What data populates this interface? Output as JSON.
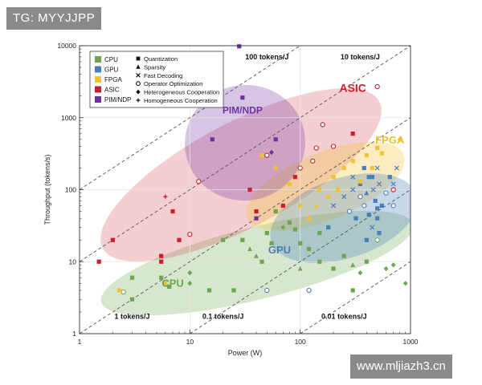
{
  "watermarks": {
    "top": "TG: MYYJJPP",
    "bottom": "www.mljiazh3.cn"
  },
  "colors": {
    "cpu": "#6aa84f",
    "gpu": "#4a7ebb",
    "fpga": "#f1c232",
    "asic": "#cc1f2e",
    "pim": "#7030a0",
    "axis": "#333333",
    "guide": "#555555"
  },
  "chart_data": {
    "type": "scatter",
    "title": "",
    "xlabel": "Power (W)",
    "ylabel": "Throughput (tokens/s)",
    "xscale": "log",
    "yscale": "log",
    "xlim": [
      1,
      1000
    ],
    "ylim": [
      1,
      10000
    ],
    "x_ticks": [
      "1",
      "10",
      "100",
      "1000"
    ],
    "y_ticks": [
      "1",
      "10",
      "100",
      "1000",
      "10000"
    ],
    "efficiency_lines": [
      {
        "label": "100 tokens/J",
        "tokens_per_joule": 100,
        "label_x": 50,
        "label_y": 6500
      },
      {
        "label": "10 tokens/J",
        "tokens_per_joule": 10,
        "label_x": 350,
        "label_y": 6500
      },
      {
        "label": "1 tokens/J",
        "tokens_per_joule": 1,
        "label_x": 3,
        "label_y": 1.6
      },
      {
        "label": "0.1 tokens/J",
        "tokens_per_joule": 0.1,
        "label_x": 20,
        "label_y": 1.6
      },
      {
        "label": "0.01 tokens/J",
        "tokens_per_joule": 0.01,
        "label_x": 250,
        "label_y": 1.6
      }
    ],
    "legend": {
      "placement": "top-left",
      "platforms": [
        {
          "name": "CPU",
          "key": "cpu"
        },
        {
          "name": "GPU",
          "key": "gpu"
        },
        {
          "name": "FPGA",
          "key": "fpga"
        },
        {
          "name": "ASIC",
          "key": "asic"
        },
        {
          "name": "PIM/NDP",
          "key": "pim"
        }
      ],
      "techniques": [
        {
          "name": "Quantization",
          "marker": "square"
        },
        {
          "name": "Sparsity",
          "marker": "triangle"
        },
        {
          "name": "Fast Decoding",
          "marker": "x"
        },
        {
          "name": "Operator Optimization",
          "marker": "circle"
        },
        {
          "name": "Heterogeneous Cooperation",
          "marker": "diamond"
        },
        {
          "name": "Homogeneous Cooperation",
          "marker": "plus"
        }
      ]
    },
    "regions": [
      {
        "name": "CPU",
        "key": "cpu",
        "label_x": 7,
        "label_y": 4.5,
        "label_size": 13
      },
      {
        "name": "GPU",
        "key": "gpu",
        "label_x": 65,
        "label_y": 13,
        "label_size": 13
      },
      {
        "name": "FPGA",
        "key": "fpga",
        "label_x": 650,
        "label_y": 440,
        "label_size": 13
      },
      {
        "name": "ASIC",
        "key": "asic",
        "label_x": 300,
        "label_y": 2300,
        "label_size": 14
      },
      {
        "name": "PIM/NDP",
        "key": "pim",
        "label_x": 30,
        "label_y": 1150,
        "label_size": 12
      }
    ],
    "series": [
      {
        "name": "CPU",
        "key": "cpu",
        "points": [
          [
            2.5,
            3.8,
            "circle"
          ],
          [
            3,
            3,
            "square"
          ],
          [
            3,
            6,
            "square"
          ],
          [
            5.5,
            6,
            "square"
          ],
          [
            6,
            5,
            "square"
          ],
          [
            6.5,
            4.5,
            "square"
          ],
          [
            10,
            7,
            "diamond"
          ],
          [
            10,
            5,
            "diamond"
          ],
          [
            15,
            4,
            "square"
          ],
          [
            20,
            20,
            "square"
          ],
          [
            25,
            4,
            "square"
          ],
          [
            30,
            20,
            "square"
          ],
          [
            35,
            15,
            "triangle"
          ],
          [
            40,
            12,
            "triangle"
          ],
          [
            50,
            25,
            "square"
          ],
          [
            55,
            18,
            "square"
          ],
          [
            60,
            50,
            "square"
          ],
          [
            80,
            35,
            "square"
          ],
          [
            90,
            28,
            "square"
          ],
          [
            100,
            18,
            "square"
          ],
          [
            100,
            8,
            "triangle"
          ],
          [
            120,
            15,
            "square"
          ],
          [
            150,
            25,
            "square"
          ],
          [
            150,
            10,
            "square"
          ],
          [
            200,
            8,
            "square"
          ],
          [
            250,
            12,
            "square"
          ],
          [
            300,
            9,
            "triangle"
          ],
          [
            300,
            4,
            "square"
          ],
          [
            350,
            7,
            "diamond"
          ],
          [
            400,
            10,
            "square"
          ],
          [
            500,
            20,
            "circle"
          ],
          [
            600,
            8,
            "diamond"
          ],
          [
            700,
            9,
            "diamond"
          ],
          [
            900,
            5,
            "diamond"
          ],
          [
            45,
            10,
            "square"
          ],
          [
            70,
            30,
            "diamond"
          ]
        ]
      },
      {
        "name": "GPU",
        "key": "gpu",
        "points": [
          [
            50,
            4,
            "circle"
          ],
          [
            120,
            4,
            "circle"
          ],
          [
            180,
            30,
            "square"
          ],
          [
            200,
            60,
            "x"
          ],
          [
            250,
            80,
            "x"
          ],
          [
            280,
            50,
            "circle"
          ],
          [
            300,
            100,
            "x"
          ],
          [
            320,
            40,
            "square"
          ],
          [
            350,
            120,
            "square"
          ],
          [
            380,
            60,
            "circle"
          ],
          [
            400,
            90,
            "triangle"
          ],
          [
            420,
            45,
            "square"
          ],
          [
            450,
            150,
            "square"
          ],
          [
            480,
            70,
            "square"
          ],
          [
            500,
            200,
            "x"
          ],
          [
            500,
            40,
            "square"
          ],
          [
            520,
            120,
            "x"
          ],
          [
            550,
            60,
            "square"
          ],
          [
            600,
            90,
            "circle"
          ],
          [
            650,
            150,
            "square"
          ],
          [
            700,
            60,
            "circle"
          ],
          [
            700,
            120,
            "x"
          ],
          [
            750,
            200,
            "x"
          ],
          [
            400,
            20,
            "square"
          ],
          [
            450,
            30,
            "x"
          ],
          [
            380,
            200,
            "square"
          ],
          [
            300,
            150,
            "x"
          ],
          [
            350,
            80,
            "circle"
          ],
          [
            420,
            150,
            "square"
          ],
          [
            460,
            100,
            "x"
          ],
          [
            500,
            55,
            "square"
          ],
          [
            520,
            25,
            "square"
          ]
        ]
      },
      {
        "name": "FPGA",
        "key": "fpga",
        "points": [
          [
            2.3,
            4,
            "square"
          ],
          [
            6,
            5,
            "square"
          ],
          [
            45,
            300,
            "square"
          ],
          [
            60,
            200,
            "square"
          ],
          [
            80,
            120,
            "square"
          ],
          [
            100,
            60,
            "square"
          ],
          [
            120,
            40,
            "square"
          ],
          [
            150,
            100,
            "square"
          ],
          [
            180,
            80,
            "square"
          ],
          [
            200,
            150,
            "square"
          ],
          [
            250,
            200,
            "square"
          ],
          [
            300,
            250,
            "square"
          ],
          [
            350,
            130,
            "square"
          ],
          [
            400,
            300,
            "square"
          ],
          [
            450,
            200,
            "square"
          ],
          [
            500,
            380,
            "square"
          ],
          [
            550,
            320,
            "square"
          ],
          [
            800,
            500,
            "diamond"
          ],
          [
            140,
            60,
            "triangle"
          ],
          [
            220,
            100,
            "square"
          ]
        ]
      },
      {
        "name": "ASIC",
        "key": "asic",
        "points": [
          [
            1.5,
            10,
            "square"
          ],
          [
            2,
            20,
            "square"
          ],
          [
            5.5,
            12,
            "square"
          ],
          [
            5.5,
            10,
            "square"
          ],
          [
            7,
            50,
            "square"
          ],
          [
            8,
            20,
            "square"
          ],
          [
            10,
            24,
            "circle"
          ],
          [
            12,
            130,
            "circle"
          ],
          [
            35,
            100,
            "square"
          ],
          [
            40,
            50,
            "square"
          ],
          [
            50,
            300,
            "circle"
          ],
          [
            90,
            150,
            "square"
          ],
          [
            100,
            200,
            "circle"
          ],
          [
            130,
            250,
            "circle"
          ],
          [
            140,
            380,
            "circle"
          ],
          [
            160,
            800,
            "circle"
          ],
          [
            200,
            400,
            "circle"
          ],
          [
            300,
            600,
            "square"
          ],
          [
            500,
            2700,
            "circle"
          ],
          [
            700,
            100,
            "circle"
          ],
          [
            6,
            80,
            "plus"
          ],
          [
            70,
            60,
            "square"
          ]
        ]
      },
      {
        "name": "PIM/NDP",
        "key": "pim",
        "points": [
          [
            16,
            500,
            "square"
          ],
          [
            28,
            9800,
            "square"
          ],
          [
            30,
            1900,
            "square"
          ],
          [
            55,
            330,
            "diamond"
          ],
          [
            60,
            500,
            "square"
          ],
          [
            40,
            40,
            "square"
          ]
        ]
      }
    ]
  }
}
